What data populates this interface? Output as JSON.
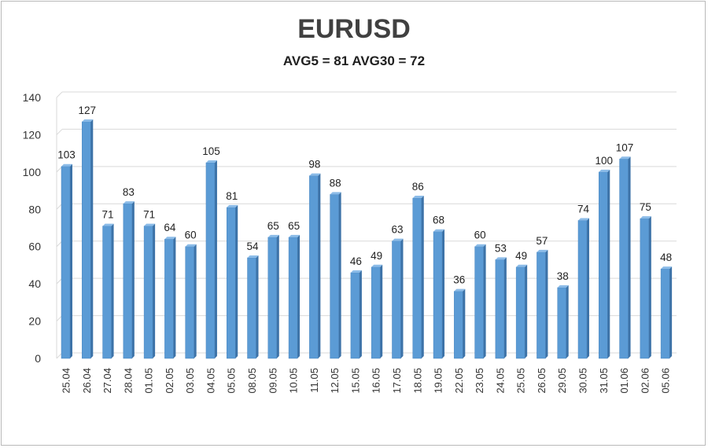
{
  "chart_data": {
    "type": "bar",
    "title": "EURUSD",
    "subtitle": "AVG5 = 81 AVG30 = 72",
    "xlabel": "",
    "ylabel": "",
    "ylim": [
      0,
      140
    ],
    "yticks": [
      0,
      20,
      40,
      60,
      80,
      100,
      120,
      140
    ],
    "grid": true,
    "legend": "none",
    "categories": [
      "25.04",
      "26.04",
      "27.04",
      "28.04",
      "01.05",
      "02.05",
      "03.05",
      "04.05",
      "05.05",
      "08.05",
      "09.05",
      "10.05",
      "11.05",
      "12.05",
      "15.05",
      "16.05",
      "17.05",
      "18.05",
      "19.05",
      "22.05",
      "23.05",
      "24.05",
      "25.05",
      "26.05",
      "29.05",
      "30.05",
      "31.05",
      "01.06",
      "02.06",
      "05.06"
    ],
    "values": [
      103,
      127,
      71,
      83,
      71,
      64,
      60,
      105,
      81,
      54,
      65,
      65,
      98,
      88,
      46,
      49,
      63,
      86,
      68,
      36,
      60,
      53,
      49,
      57,
      38,
      74,
      100,
      107,
      75,
      48
    ],
    "colors": {
      "bar_front": "#5b9bd5",
      "bar_side": "#3d73a8",
      "bar_top": "#8cbce8",
      "grid": "#d9d9d9"
    }
  }
}
